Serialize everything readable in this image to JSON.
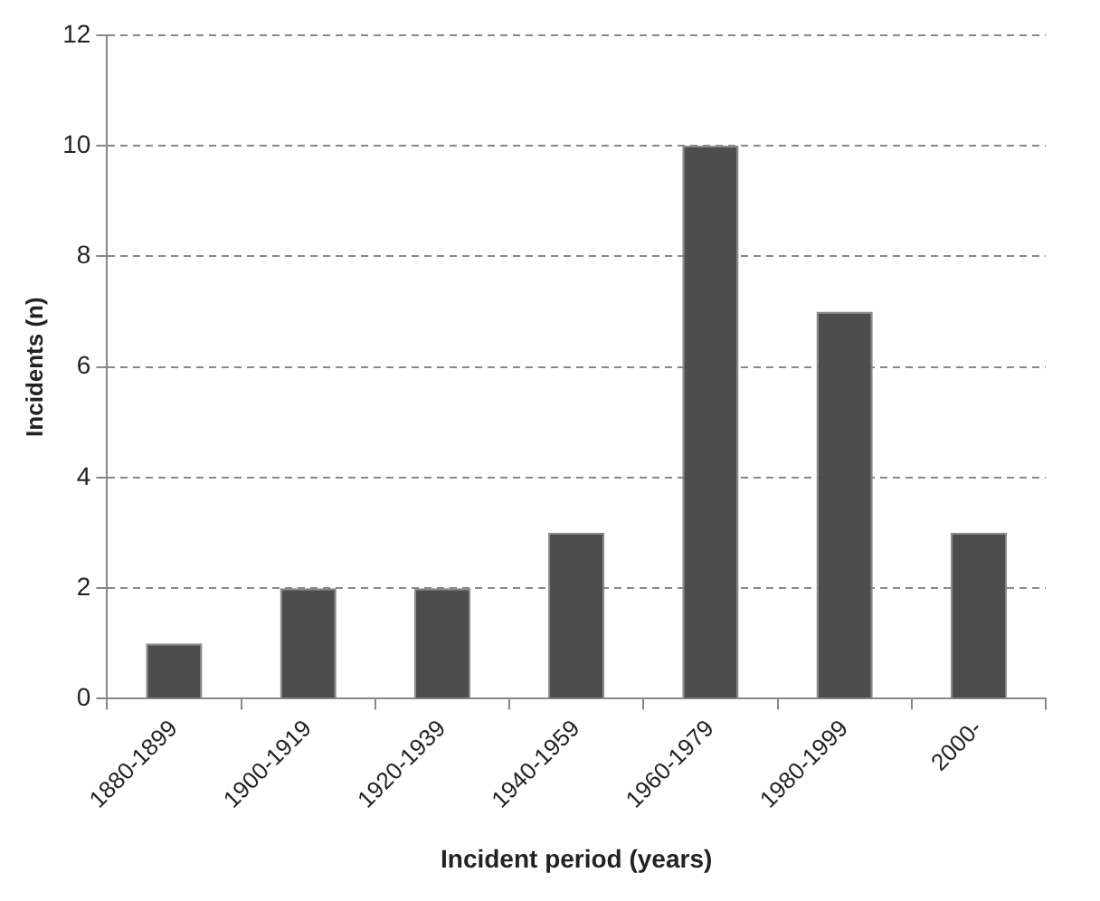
{
  "chart_data": {
    "type": "bar",
    "xlabel": "Incident period (years)",
    "ylabel": "Incidents (n)",
    "categories": [
      "1880-1899",
      "1900-1919",
      "1920-1939",
      "1940-1959",
      "1960-1979",
      "1980-1999",
      "2000-"
    ],
    "values": [
      1,
      2,
      2,
      3,
      10,
      7,
      3
    ],
    "color": "#4d4d4d",
    "ylim": [
      0,
      12
    ],
    "yticks": [
      0,
      2,
      4,
      6,
      8,
      10,
      12
    ],
    "grid": "y",
    "legend": false
  }
}
